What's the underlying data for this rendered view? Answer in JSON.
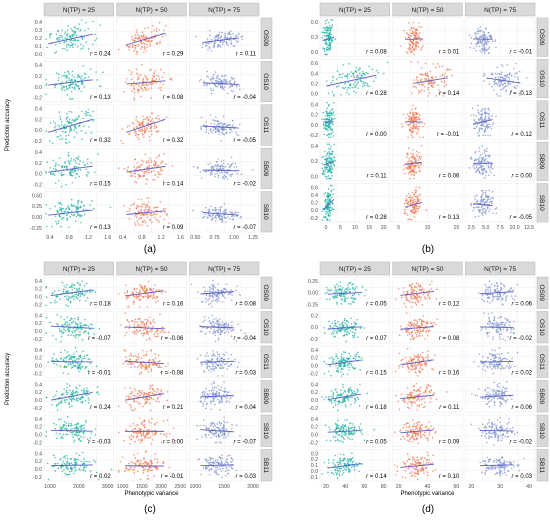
{
  "chart_data": [
    {
      "type": "scatter",
      "panel_label": "(a)",
      "columns": [
        "N(TP) = 25",
        "N(TP) = 50",
        "N(TP) = 75"
      ],
      "rows": [
        "OS09",
        "OS10",
        "OS11",
        "SB09",
        "SB10"
      ],
      "ylabel": "Prediction accuracy",
      "xlabel": "",
      "xticks": [
        [
          "0.4",
          "0.8",
          "1.2",
          "1.6"
        ],
        [
          "0.4",
          "0.8",
          "1.2",
          "1.6"
        ],
        [
          "0.50",
          "0.75",
          "1.00",
          "1.25"
        ]
      ],
      "yticks": [
        [
          "0.4",
          "0.3",
          "0.2",
          "0.1",
          "0.0"
        ],
        [
          "0.4",
          "0.2",
          "0.0",
          "-0.2"
        ],
        [
          "0.4",
          "0.2",
          "0.0",
          "-0.2"
        ],
        [
          "0.4",
          "0.2",
          "0.0",
          "-0.2"
        ],
        [
          "0.50",
          "0.25",
          "0.00",
          "-0.25"
        ]
      ],
      "r": [
        [
          "r = 0.24",
          "r = 0.29",
          "r = 0.11"
        ],
        [
          "r = 0.13",
          "r = 0.08",
          "r = -0.04"
        ],
        [
          "r = 0.32",
          "r = 0.32",
          "r = -0.05"
        ],
        [
          "r = 0.15",
          "r = 0.14",
          "r = -0.02"
        ],
        [
          "r = 0.13",
          "r = 0.09",
          "r = -0.07"
        ]
      ]
    },
    {
      "type": "scatter",
      "panel_label": "(b)",
      "columns": [
        "N(TP) = 25",
        "N(TP) = 50",
        "N(TP) = 75"
      ],
      "rows": [
        "OS09",
        "OS10",
        "OS11",
        "SB09",
        "SB10"
      ],
      "ylabel": "",
      "xlabel": "",
      "xticks": [
        [
          "0",
          "5",
          "10",
          "15",
          "20"
        ],
        [
          "5",
          "10",
          "15"
        ],
        [
          "2.5",
          "5.0",
          "7.5",
          "10.0",
          "12.5"
        ]
      ],
      "yticks": [
        [
          "0.6",
          "0.3",
          "0.0"
        ],
        [
          "0.6",
          "0.4",
          "0.2",
          "0.0"
        ],
        [
          "0.4",
          "0.2",
          "0.0",
          "-0.2"
        ],
        [
          "0.4",
          "0.2",
          "0.0"
        ],
        [
          "0.6",
          "0.4",
          "0.2",
          "0.0",
          "-0.2"
        ]
      ],
      "r": [
        [
          "r = 0.08",
          "r = 0.01",
          "r = -0.01"
        ],
        [
          "r = 0.28",
          "r = 0.14",
          "r = -0.13"
        ],
        [
          "r = 0.00",
          "r = -0.01",
          "r = 0.12"
        ],
        [
          "r = 0.11",
          "r = 0.06",
          "r = 0.00"
        ],
        [
          "r = 0.28",
          "r = 0.13",
          "r = -0.05"
        ]
      ]
    },
    {
      "type": "scatter",
      "panel_label": "(c)",
      "columns": [
        "N(TP) = 25",
        "N(TP) = 50",
        "N(TP) = 75"
      ],
      "rows": [
        "OS09",
        "OS10",
        "OS11",
        "SB09",
        "SB10",
        "SB11"
      ],
      "ylabel": "Prediction accuracy",
      "xlabel": "Phenotypic variance",
      "xticks": [
        [
          "1000",
          "2000",
          "3000"
        ],
        [
          "1000",
          "1500",
          "2000",
          "2500"
        ],
        [
          "1000",
          "1500",
          "2000"
        ]
      ],
      "yticks": [
        [
          "0.4",
          "0.2",
          "0.0",
          "-0.2"
        ],
        [
          "0.4",
          "0.2",
          "0.0",
          "-0.2"
        ],
        [
          "0.4",
          "0.2",
          "0.0",
          "-0.2"
        ],
        [
          "0.4",
          "0.2",
          "0.0",
          "-0.2"
        ],
        [
          "0.4",
          "0.2",
          "0.0",
          "-0.2"
        ],
        [
          "0.4",
          "0.2",
          "0.0",
          "-0.2"
        ]
      ],
      "r": [
        [
          "r = 0.18",
          "r = 0.16",
          "r = 0.08"
        ],
        [
          "r = -0.07",
          "r = -0.06",
          "r = -0.04"
        ],
        [
          "r = -0.01",
          "r = -0.08",
          "r = 0.03"
        ],
        [
          "r = 0.24",
          "r = 0.21",
          "r = 0.04"
        ],
        [
          "r = -0.03",
          "r = 0.00",
          "r = -0.07"
        ],
        [
          "r = 0.02",
          "r = -0.01",
          "r = 0.03"
        ]
      ]
    },
    {
      "type": "scatter",
      "panel_label": "(d)",
      "columns": [
        "N(TP) = 25",
        "N(TP) = 50",
        "N(TP) = 75"
      ],
      "rows": [
        "OS09",
        "OS10",
        "OS11",
        "SB09",
        "SB10",
        "SB11"
      ],
      "ylabel": "",
      "xlabel": "Phenotypic variance",
      "xticks": [
        [
          "20",
          "40",
          "60",
          "80"
        ],
        [
          "20",
          "40",
          "60"
        ],
        [
          "20",
          "30",
          "40"
        ]
      ],
      "yticks": [
        [
          "0.25",
          "0.00",
          "-0.25"
        ],
        [
          "0.2",
          "0.0",
          "-0.2"
        ],
        [
          "0.4",
          "0.2",
          "0.0",
          "-0.2"
        ],
        [
          "0.4",
          "0.2",
          "0.0",
          "-0.2"
        ],
        [
          "0.4",
          "0.2",
          "0.0",
          "-0.2"
        ],
        [
          "0.3",
          "0.2",
          "0.1",
          "0.0",
          "-0.1"
        ]
      ],
      "r": [
        [
          "r = 0.05",
          "r = 0.12",
          "r = 0.06"
        ],
        [
          "r = 0.07",
          "r = 0.08",
          "r = -0.02"
        ],
        [
          "r = 0.15",
          "r = 0.16",
          "r = 0.02"
        ],
        [
          "r = 0.18",
          "r = 0.11",
          "r = 0.06"
        ],
        [
          "r = 0.05",
          "r = 0.09",
          "r = -0.02"
        ],
        [
          "r = 0.14",
          "r = 0.10",
          "r = 0.03"
        ]
      ]
    }
  ],
  "colors": {
    "col1": "#1ab1a1",
    "col2": "#f3744e",
    "col3": "#7f93ce",
    "fit_line": "#5b5bc9",
    "strip_bg": "#d9d9d9",
    "grid": "#ebebeb"
  }
}
